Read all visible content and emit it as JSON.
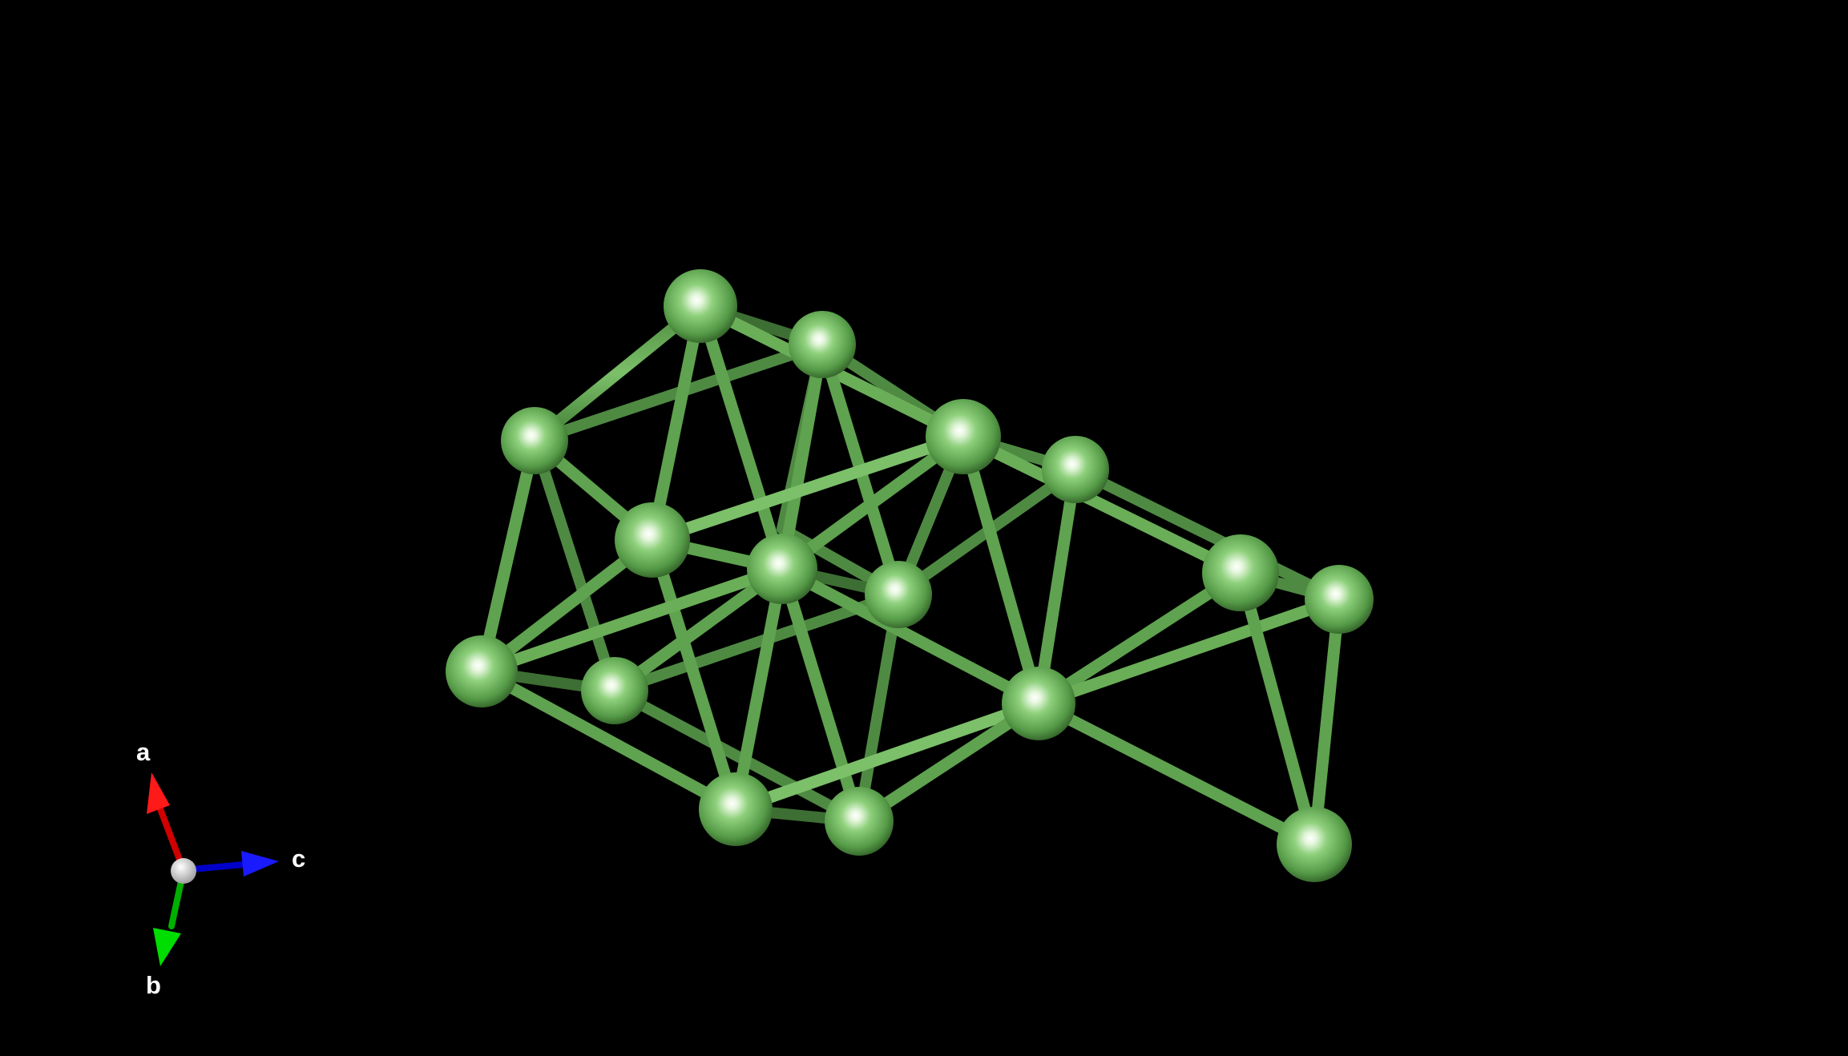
{
  "axes": {
    "a": {
      "label": "a",
      "color": "#e00000"
    },
    "b": {
      "label": "b",
      "color": "#00c800"
    },
    "c": {
      "label": "c",
      "color": "#0010e0"
    },
    "origin_color": "#d8d8d8"
  },
  "atom_color": "#5faa4f",
  "bond_color": "#62a852",
  "background": "#000000"
}
